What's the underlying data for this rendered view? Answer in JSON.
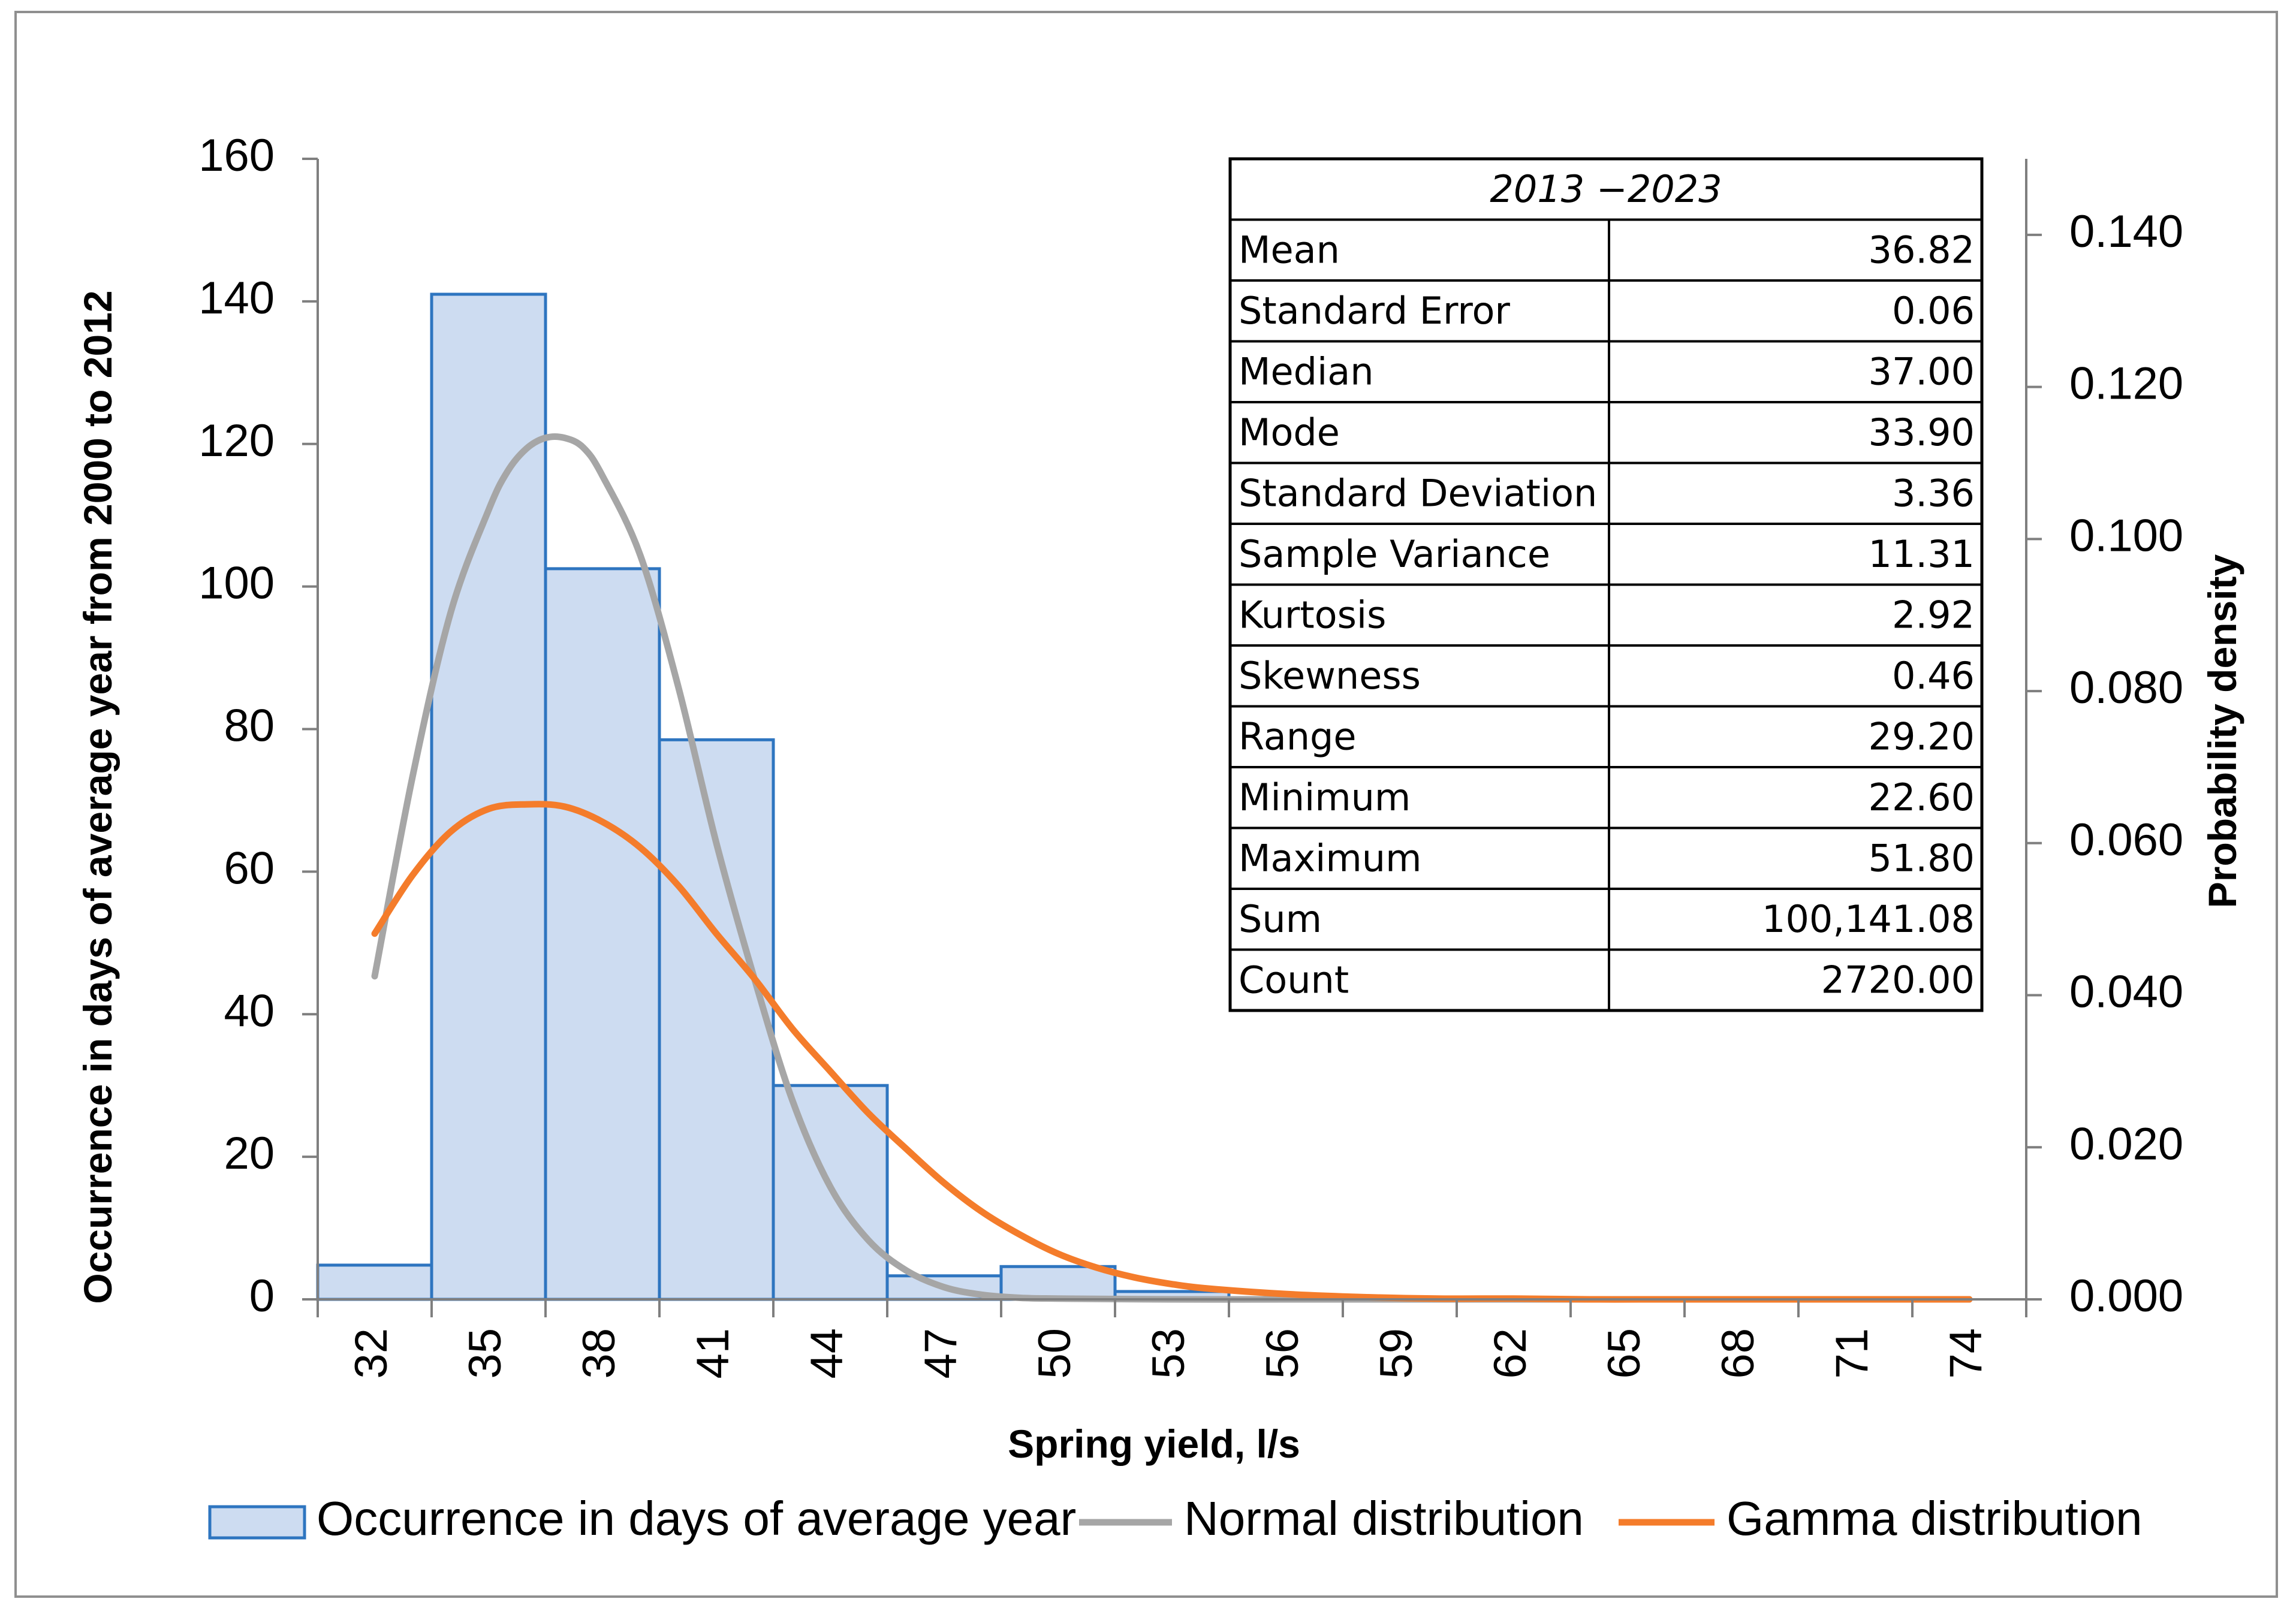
{
  "chart_data": {
    "type": "bar",
    "x_categories": [
      "32",
      "35",
      "38",
      "41",
      "44",
      "47",
      "50",
      "53",
      "56",
      "59",
      "62",
      "65",
      "68",
      "71",
      "74"
    ],
    "xlabel": "Spring yield, l/s",
    "ylabel": "Occurrence in days of average year from 2000 to 2012",
    "y2label": "Probability density",
    "ylim": [
      0,
      160
    ],
    "yticks": [
      0,
      20,
      40,
      60,
      80,
      100,
      120,
      140,
      160
    ],
    "y2lim": [
      0,
      0.15
    ],
    "y2ticks": [
      "0.000",
      "0.020",
      "0.040",
      "0.060",
      "0.080",
      "0.100",
      "0.120",
      "0.140"
    ],
    "histogram": {
      "name": "Occurrence in days of average year",
      "values": [
        4.8,
        141,
        102.5,
        78.5,
        30,
        3.3,
        4.6,
        1.1,
        0,
        0,
        0,
        0,
        0,
        0,
        0
      ]
    },
    "normal": {
      "name": "Normal distribution",
      "x": [
        32,
        33,
        34,
        35,
        35.5,
        36,
        36.5,
        37,
        37.5,
        38,
        39,
        40,
        41,
        42,
        43,
        44,
        45,
        46,
        47,
        48,
        49,
        50,
        53,
        56,
        59,
        62,
        65,
        68,
        71,
        74
      ],
      "density": [
        0.0425,
        0.0688,
        0.0903,
        0.1038,
        0.1089,
        0.1119,
        0.1133,
        0.1133,
        0.112,
        0.1083,
        0.0978,
        0.0805,
        0.06,
        0.0422,
        0.0262,
        0.0148,
        0.0078,
        0.0038,
        0.0016,
        0.0006,
        0.0002,
        0.0001,
        0,
        0,
        0,
        0,
        0,
        0,
        0,
        0
      ]
    },
    "gamma": {
      "name": "Gamma distribution",
      "x": [
        32,
        33,
        34,
        35,
        36,
        37,
        38,
        39,
        40,
        41,
        42,
        43,
        44,
        45,
        46,
        47,
        48,
        49,
        50,
        51,
        52,
        53,
        54,
        56,
        58,
        60,
        62,
        64,
        66,
        68,
        71,
        74
      ],
      "density": [
        0.0481,
        0.0558,
        0.0615,
        0.0645,
        0.0651,
        0.0648,
        0.0628,
        0.0594,
        0.0544,
        0.0481,
        0.0422,
        0.0356,
        0.03,
        0.0245,
        0.0198,
        0.0153,
        0.0115,
        0.0085,
        0.006,
        0.0042,
        0.0029,
        0.002,
        0.0014,
        0.0007,
        0.0003,
        0.0001,
        0.0001,
        0,
        0,
        0,
        0,
        0
      ]
    },
    "stats_table": {
      "title": "2013 −2023",
      "rows": [
        {
          "label": "Mean",
          "value": "36.82"
        },
        {
          "label": "Standard Error",
          "value": "0.06"
        },
        {
          "label": "Median",
          "value": "37.00"
        },
        {
          "label": "Mode",
          "value": "33.90"
        },
        {
          "label": "Standard Deviation",
          "value": "3.36"
        },
        {
          "label": "Sample Variance",
          "value": "11.31"
        },
        {
          "label": "Kurtosis",
          "value": "2.92"
        },
        {
          "label": "Skewness",
          "value": "0.46"
        },
        {
          "label": "Range",
          "value": "29.20"
        },
        {
          "label": "Minimum",
          "value": "22.60"
        },
        {
          "label": "Maximum",
          "value": "51.80"
        },
        {
          "label": "Sum",
          "value": "100,141.08"
        },
        {
          "label": "Count",
          "value": "2720.00"
        }
      ]
    },
    "legend": [
      {
        "name": "Occurrence in days of average year",
        "kind": "bar"
      },
      {
        "name": "Normal distribution",
        "kind": "line"
      },
      {
        "name": "Gamma distribution",
        "kind": "line"
      }
    ],
    "colors": {
      "bar_fill": "#cddcf1",
      "bar_stroke": "#2e75c0",
      "normal": "#a6a6a6",
      "gamma": "#f47c2b",
      "axis": "#7f7f7f"
    }
  }
}
